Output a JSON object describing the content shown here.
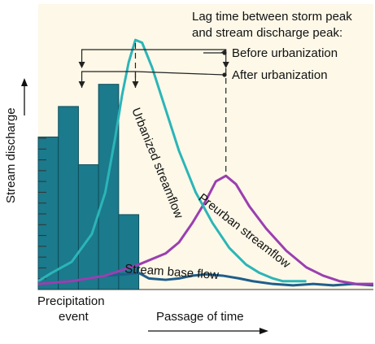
{
  "colors": {
    "background": "#fdf8e8",
    "precip_fill": "#1b7a8c",
    "urbanized": "#2bb5b8",
    "preurban": "#9b3fb0",
    "base": "#1f5e8a",
    "text": "#111111"
  },
  "labels": {
    "lag_title_line1": "Lag time between storm peak",
    "lag_title_line2": "and stream discharge peak:",
    "before": "Before urbanization",
    "after": "After urbanization",
    "y_axis": "Stream discharge",
    "x_axis": "Passage of time",
    "event_line1": "Precipitation",
    "event_line2": "event",
    "urbanized": "Urbanized streamflow",
    "preurban": "Preurban streamflow",
    "base": "Stream base flow"
  },
  "chart_data": {
    "type": "line",
    "x_range": [
      0,
      100
    ],
    "y_range": [
      0,
      100
    ],
    "tick_marks_on_y_axis": 14,
    "precipitation_bars": [
      {
        "x": 3,
        "value": 55
      },
      {
        "x": 9,
        "value": 66
      },
      {
        "x": 15,
        "value": 45
      },
      {
        "x": 21,
        "value": 74
      },
      {
        "x": 27,
        "value": 27
      }
    ],
    "storm_peak_x": 13,
    "series": [
      {
        "name": "Urbanized streamflow",
        "points": [
          [
            0,
            3
          ],
          [
            4,
            6
          ],
          [
            10,
            10
          ],
          [
            16,
            20
          ],
          [
            20,
            35
          ],
          [
            23,
            55
          ],
          [
            25,
            70
          ],
          [
            27,
            82
          ],
          [
            29,
            90
          ],
          [
            31,
            89
          ],
          [
            34,
            80
          ],
          [
            38,
            65
          ],
          [
            42,
            50
          ],
          [
            47,
            35
          ],
          [
            52,
            24
          ],
          [
            57,
            15
          ],
          [
            62,
            9
          ],
          [
            66,
            6
          ],
          [
            70,
            4
          ],
          [
            73,
            3
          ],
          [
            80,
            3
          ]
        ]
      },
      {
        "name": "Preurban streamflow",
        "points": [
          [
            0,
            2
          ],
          [
            10,
            3
          ],
          [
            20,
            5
          ],
          [
            30,
            9
          ],
          [
            38,
            13
          ],
          [
            42,
            17
          ],
          [
            46,
            24
          ],
          [
            50,
            32
          ],
          [
            53,
            39
          ],
          [
            56,
            41
          ],
          [
            59,
            38
          ],
          [
            63,
            30
          ],
          [
            68,
            22
          ],
          [
            74,
            14
          ],
          [
            80,
            8
          ],
          [
            85,
            5
          ],
          [
            90,
            3
          ],
          [
            95,
            2
          ],
          [
            100,
            2
          ]
        ]
      },
      {
        "name": "Stream base flow",
        "points": [
          [
            0,
            2
          ],
          [
            10,
            3
          ],
          [
            15,
            4
          ],
          [
            20,
            5
          ],
          [
            26,
            5.5
          ],
          [
            30,
            6
          ],
          [
            33,
            4
          ],
          [
            38,
            3.5
          ],
          [
            42,
            4
          ],
          [
            46,
            5
          ],
          [
            50,
            5.5
          ],
          [
            55,
            5
          ],
          [
            60,
            4
          ],
          [
            64,
            3
          ],
          [
            70,
            2
          ],
          [
            76,
            1.5
          ],
          [
            82,
            2
          ],
          [
            88,
            1.5
          ],
          [
            94,
            2
          ],
          [
            100,
            1.5
          ]
        ]
      }
    ],
    "peaks": {
      "before_urbanization": {
        "storm_x": 13,
        "discharge_x": 56
      },
      "after_urbanization": {
        "storm_x": 13,
        "discharge_x": 29
      }
    }
  }
}
